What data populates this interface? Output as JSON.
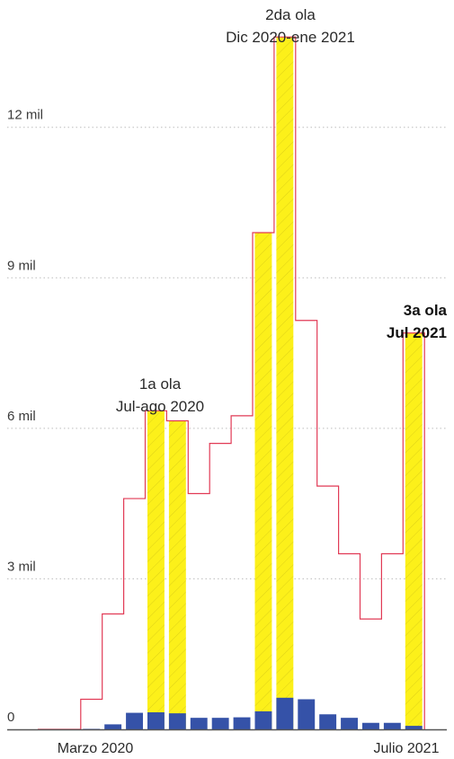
{
  "chart_data": {
    "type": "bar",
    "categories": [
      "2020-02",
      "2020-03",
      "2020-04",
      "2020-05",
      "2020-06",
      "2020-07",
      "2020-08",
      "2020-09",
      "2020-10",
      "2020-11",
      "2020-12",
      "2021-01",
      "2021-02",
      "2021-03",
      "2021-04",
      "2021-05",
      "2021-06",
      "2021-07"
    ],
    "series": [
      {
        "values": [
          0,
          0,
          10,
          100,
          330,
          340,
          320,
          230,
          230,
          240,
          360,
          630,
          600,
          300,
          230,
          130,
          130,
          70
        ]
      },
      {
        "values": [
          0,
          0,
          600,
          2300,
          4600,
          6350,
          6150,
          4700,
          5700,
          6250,
          9900,
          13800,
          8150,
          4850,
          3500,
          2200,
          3500,
          7900
        ]
      }
    ],
    "xtick_labels": [
      "Marzo 2020",
      "Julio 2021"
    ],
    "yticks": [
      {
        "value": 0,
        "label": "0"
      },
      {
        "value": 3000,
        "label": "3 mil"
      },
      {
        "value": 6000,
        "label": "6 mil"
      },
      {
        "value": 9000,
        "label": "9 mil"
      },
      {
        "value": 12000,
        "label": "12 mil"
      }
    ],
    "ylim": [
      0,
      14000
    ],
    "highlighted_categories": [
      "2020-07",
      "2020-08",
      "2020-12",
      "2021-01",
      "2021-07"
    ],
    "annotations": [
      {
        "lines": [
          "1a ola",
          "Jul-ago 2020"
        ],
        "bold": false
      },
      {
        "lines": [
          "2da ola",
          "Dic 2020-ene 2021"
        ],
        "bold": false
      },
      {
        "lines": [
          "3a ola",
          "Jul 2021"
        ],
        "bold": true
      }
    ],
    "grid": true,
    "colors": {
      "highlight_fill": "#fcf01a",
      "step_line": "#e13a55",
      "bar_fill": "#3552a8",
      "gridline": "#bdbdbd",
      "baseline": "#555555"
    }
  }
}
